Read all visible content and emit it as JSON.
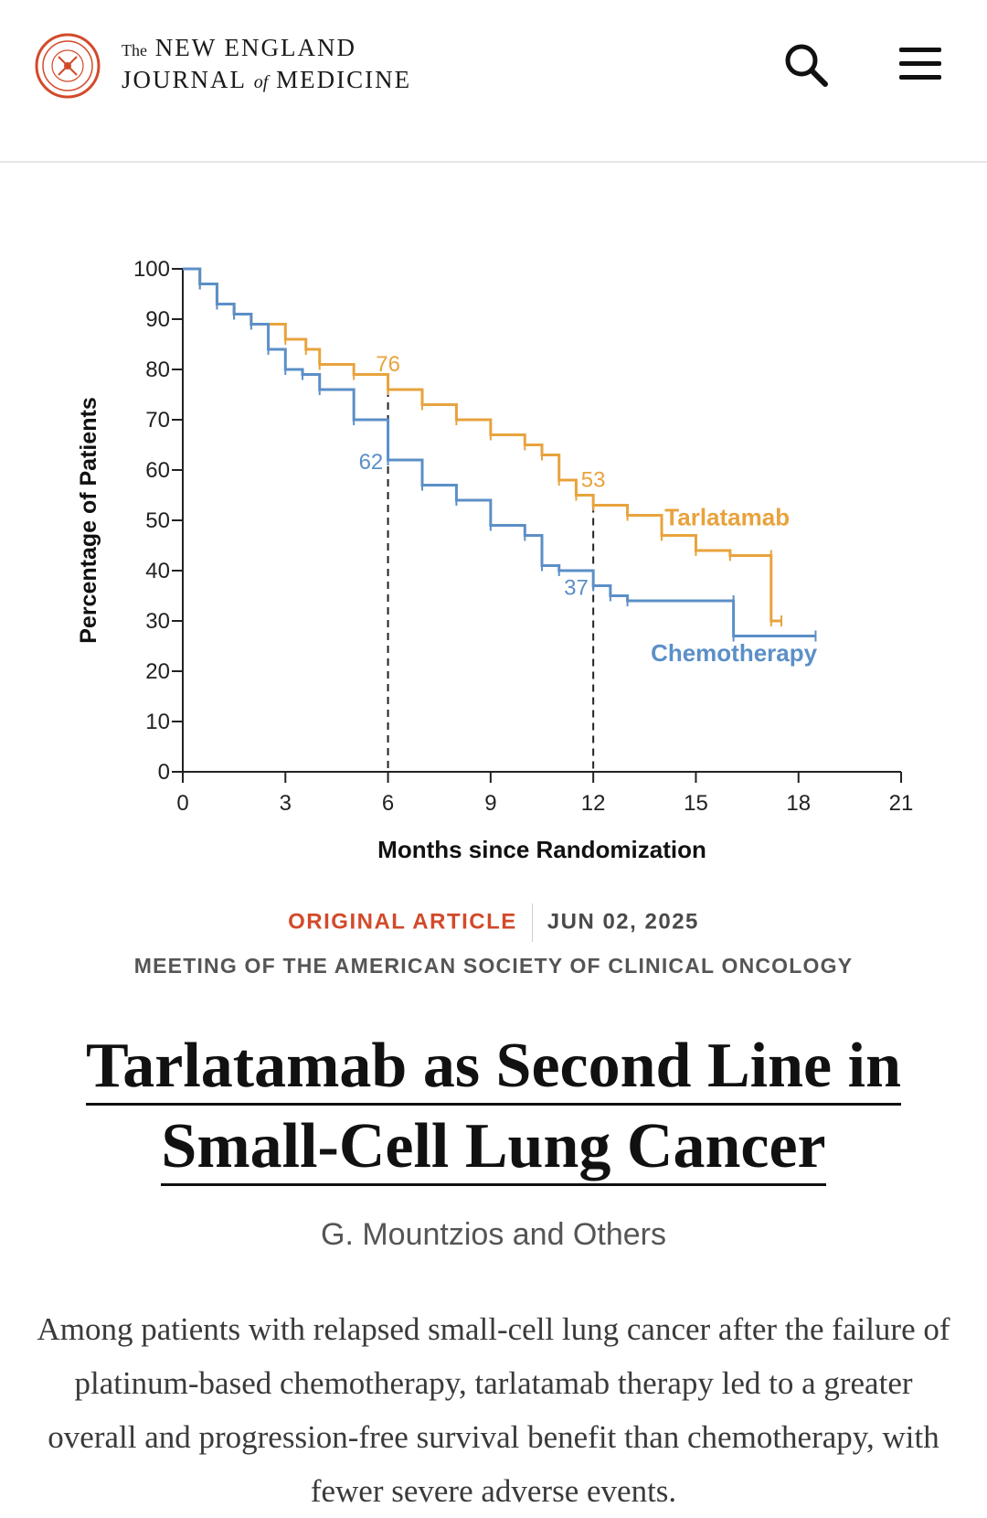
{
  "header": {
    "seal_icon": "nejm-seal-icon",
    "masthead_the": "The",
    "masthead_line1": "NEW ENGLAND",
    "masthead_journal": "JOURNAL",
    "masthead_of": "of",
    "masthead_medicine": "MEDICINE",
    "search_icon": "search-icon",
    "menu_icon": "hamburger-menu-icon"
  },
  "colors": {
    "tarlatamab": "#E8A33D",
    "chemotherapy": "#5B8FC7",
    "accent": "#D24A2A"
  },
  "chart_data": {
    "type": "line",
    "xlabel": "Months since Randomization",
    "ylabel": "Percentage of Patients",
    "xlim": [
      0,
      21
    ],
    "ylim": [
      0,
      100
    ],
    "xticks": [
      0,
      3,
      6,
      9,
      12,
      15,
      18,
      21
    ],
    "yticks": [
      0,
      10,
      20,
      30,
      40,
      50,
      60,
      70,
      80,
      90,
      100
    ],
    "grid": false,
    "series": [
      {
        "name": "Tarlatamab",
        "x": [
          0,
          0.5,
          1,
          1.5,
          2,
          3,
          3.6,
          4,
          5,
          6,
          7,
          8,
          9,
          10,
          10.5,
          11,
          11.5,
          12,
          13,
          14,
          15,
          16,
          17.2,
          17.2,
          17.5
        ],
        "y": [
          100,
          97,
          93,
          91,
          89,
          86,
          84,
          81,
          79,
          76,
          73,
          70,
          67,
          65,
          63,
          58,
          55,
          53,
          51,
          47,
          44,
          43,
          43,
          30,
          30
        ]
      },
      {
        "name": "Chemotherapy",
        "x": [
          0,
          0.5,
          1,
          1.5,
          2,
          2.5,
          3,
          3.5,
          4,
          5,
          6,
          7,
          8,
          9,
          10,
          10.5,
          11,
          12,
          12.5,
          13,
          16.1,
          16.1,
          18.5
        ],
        "y": [
          100,
          97,
          93,
          91,
          89,
          84,
          80,
          79,
          76,
          70,
          62,
          57,
          54,
          49,
          47,
          41,
          40,
          37,
          35,
          34,
          34,
          27,
          27
        ]
      }
    ],
    "annotations": [
      {
        "text": "76",
        "x": 6,
        "y": 76,
        "series": "Tarlatamab"
      },
      {
        "text": "62",
        "x": 6,
        "y": 62,
        "series": "Chemotherapy"
      },
      {
        "text": "53",
        "x": 12,
        "y": 53,
        "series": "Tarlatamab"
      },
      {
        "text": "37",
        "x": 12,
        "y": 37,
        "series": "Chemotherapy"
      }
    ],
    "reference_lines_x": [
      6,
      12
    ]
  },
  "article": {
    "type": "ORIGINAL ARTICLE",
    "date": "JUN 02, 2025",
    "meeting": "MEETING OF THE AMERICAN SOCIETY OF CLINICAL ONCOLOGY",
    "title_line1": "Tarlatamab as Second Line in",
    "title_line2": "Small-Cell Lung Cancer",
    "authors": "G. Mountzios and Others",
    "summary": "Among patients with relapsed small-cell lung cancer after the failure of platinum-based chemotherapy, tarlatamab therapy led to a greater overall and progression-free survival benefit than chemotherapy, with fewer severe adverse events."
  }
}
